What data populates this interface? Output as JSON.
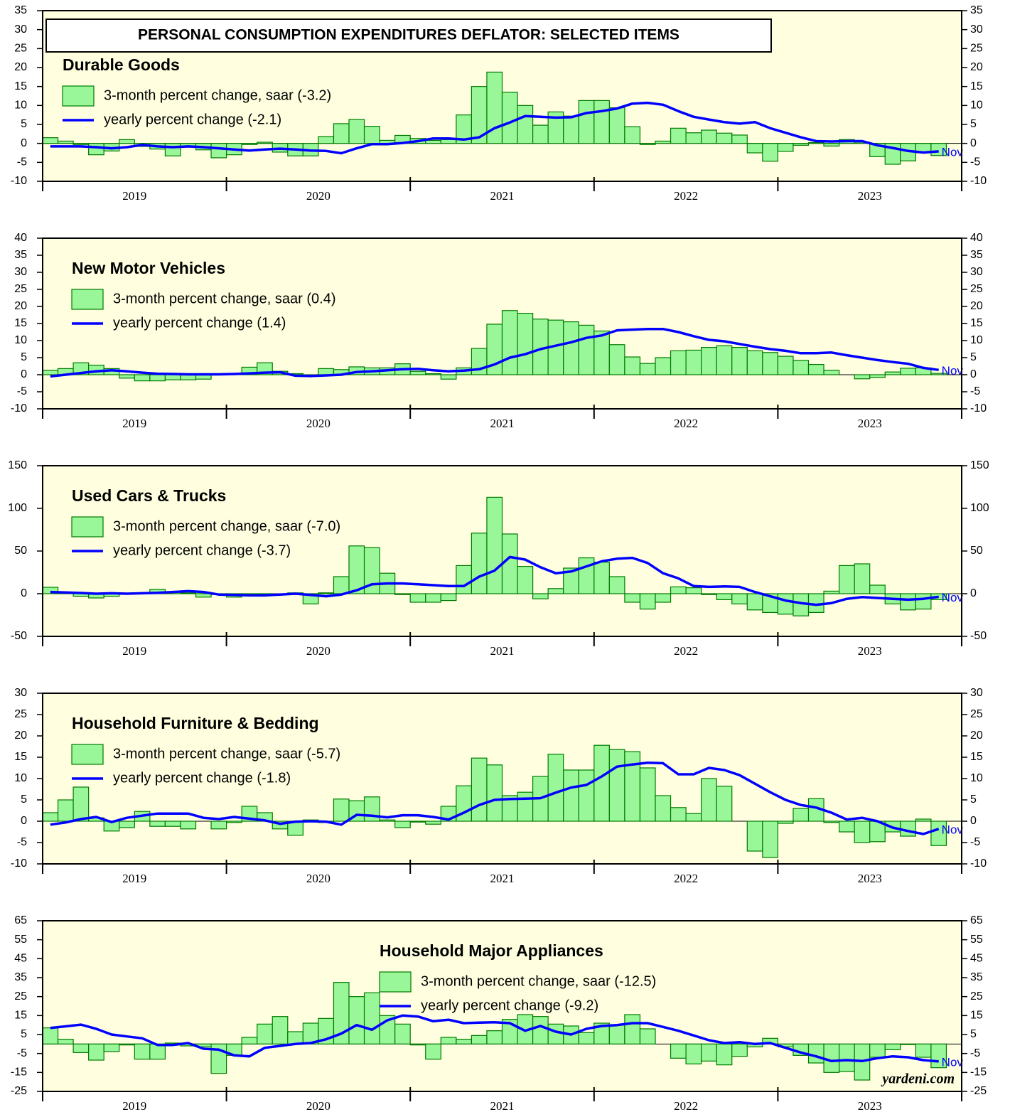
{
  "title": "PERSONAL CONSUMPTION EXPENDITURES DEFLATOR: SELECTED ITEMS",
  "source": "yardeni.com",
  "chart_data": [
    {
      "type": "combo",
      "title": "Durable Goods",
      "legend": "top-left",
      "annotation": "Nov",
      "years": [
        "2019",
        "2020",
        "2021",
        "2022",
        "2023"
      ],
      "ylim": [
        -10,
        35
      ],
      "yticks": [
        -10,
        -5,
        0,
        5,
        10,
        15,
        20,
        25,
        30,
        35
      ],
      "series": [
        {
          "name": "3-month percent change, saar (-3.2)",
          "type": "bar",
          "color": "#99f799",
          "values": [
            1.5,
            0.6,
            -0.3,
            -3,
            -2,
            1,
            -0.8,
            -1.5,
            -3.3,
            -1,
            -1.7,
            -3.8,
            -3,
            -0.3,
            0.3,
            -2.3,
            -3.3,
            -3.3,
            1.8,
            5.2,
            6.3,
            4.5,
            0.8,
            2.1,
            1.3,
            0.8,
            1,
            7.5,
            15,
            18.8,
            13.5,
            10,
            4.8,
            8.3,
            7.2,
            11.3,
            11.3,
            9.4,
            4.4,
            -0.3,
            0.6,
            4,
            2.8,
            3.5,
            2.7,
            2.2,
            -2.5,
            -4.7,
            -2.1,
            -0.5,
            0.2,
            -0.7,
            1,
            0.3,
            -3.5,
            -5.5,
            -4.6,
            -2.5,
            -3.2
          ]
        },
        {
          "name": "yearly percent change (-2.1)",
          "type": "line",
          "color": "#0000ff",
          "values": [
            -0.8,
            -0.8,
            -0.8,
            -1,
            -1.3,
            -1,
            -0.4,
            -0.8,
            -1,
            -0.8,
            -1,
            -1.3,
            -1.6,
            -1.9,
            -1.6,
            -1.4,
            -1.6,
            -1.9,
            -2,
            -2.6,
            -1.3,
            -0.2,
            -0.2,
            0.1,
            0.6,
            1.3,
            1.3,
            1,
            1.6,
            4,
            5.5,
            7.2,
            7,
            6.8,
            6.9,
            8,
            8.5,
            9.2,
            10.5,
            10.7,
            10.2,
            8.5,
            7,
            6.3,
            5.6,
            5.2,
            5.6,
            4,
            2.8,
            1.6,
            0.6,
            0.5,
            0.6,
            0.6,
            -0.5,
            -1.2,
            -2,
            -2.4,
            -2.1
          ]
        }
      ]
    },
    {
      "type": "combo",
      "title": "New Motor Vehicles",
      "legend": "top-left",
      "annotation": "Nov",
      "years": [
        "2019",
        "2020",
        "2021",
        "2022",
        "2023"
      ],
      "ylim": [
        -10,
        40
      ],
      "yticks": [
        -10,
        -5,
        0,
        5,
        10,
        15,
        20,
        25,
        30,
        35,
        40
      ],
      "series": [
        {
          "name": "3-month percent change, saar (0.4)",
          "type": "bar",
          "color": "#99f799",
          "values": [
            1.3,
            1.8,
            3.5,
            2.8,
            1.8,
            -1,
            -1.8,
            -1.8,
            -1.5,
            -1.5,
            -1.3,
            0.3,
            0,
            2.2,
            3.5,
            1,
            0.3,
            -0.3,
            1.8,
            1.5,
            2.3,
            2,
            2,
            3.2,
            1,
            0.3,
            -1.3,
            2,
            7.7,
            14.8,
            18.8,
            18,
            16.3,
            16,
            15.5,
            14.5,
            12.8,
            8.8,
            5.2,
            3.3,
            5,
            7,
            7.2,
            8,
            8.5,
            8,
            7,
            6.5,
            5.4,
            4.2,
            3,
            1.3,
            0,
            -1.2,
            -0.8,
            0.8,
            1.9,
            2,
            0.4
          ]
        },
        {
          "name": "yearly percent change (1.4)",
          "type": "line",
          "color": "#0000ff",
          "values": [
            -0.5,
            0,
            0.5,
            1,
            1.3,
            1,
            0.6,
            0.3,
            0.2,
            0.1,
            0.1,
            0.1,
            0.2,
            0.4,
            0.6,
            0.7,
            -0.3,
            -0.4,
            -0.2,
            0,
            0.8,
            1,
            1.3,
            1.6,
            1.7,
            1.3,
            1,
            1.2,
            1.6,
            3,
            5,
            6,
            7.5,
            8.5,
            9.5,
            10.8,
            11.5,
            13,
            13.2,
            13.4,
            13.4,
            12.5,
            11.3,
            10.2,
            9.8,
            9,
            8.2,
            7.5,
            7,
            6.3,
            6.3,
            6.5,
            5.7,
            5,
            4.3,
            3.7,
            3.2,
            2,
            1.4
          ]
        }
      ]
    },
    {
      "type": "combo",
      "title": "Used Cars & Trucks",
      "legend": "top-left",
      "annotation": "Nov",
      "years": [
        "2019",
        "2020",
        "2021",
        "2022",
        "2023"
      ],
      "ylim": [
        -50,
        150
      ],
      "yticks": [
        -50,
        0,
        50,
        100,
        150
      ],
      "series": [
        {
          "name": "3-month percent change, saar (-7.0)",
          "type": "bar",
          "color": "#99f799",
          "values": [
            7.5,
            1,
            -3,
            -5,
            -3,
            0.5,
            1,
            5,
            2,
            1,
            -4,
            -1,
            -4,
            -1,
            -1,
            0,
            1,
            -12,
            1,
            20,
            56,
            54,
            24,
            -1,
            -10,
            -10,
            -8,
            33,
            71,
            113,
            70,
            32,
            -6,
            6,
            30,
            42,
            37,
            20,
            -10,
            -18,
            -10,
            8,
            7,
            -1,
            -7,
            -12,
            -19,
            -22,
            -24,
            -26,
            -22,
            3,
            33,
            35,
            10,
            -12,
            -19,
            -18,
            -7
          ]
        },
        {
          "name": "yearly percent change (-3.7)",
          "type": "line",
          "color": "#0000ff",
          "values": [
            2,
            1.5,
            0.8,
            0,
            0.5,
            0,
            0.5,
            1,
            2,
            3,
            2,
            -1,
            -1.5,
            -2,
            -2,
            -1,
            0,
            -1.5,
            -3,
            -1,
            4,
            11,
            12,
            12,
            11,
            10,
            9,
            9,
            20,
            27,
            43,
            40,
            31,
            24,
            26,
            32,
            38,
            41,
            42,
            36,
            24,
            18,
            9,
            8,
            8.5,
            8,
            2,
            -3,
            -8,
            -11,
            -13,
            -11,
            -6,
            -4,
            -5,
            -6,
            -7,
            -6,
            -3.7
          ]
        }
      ]
    },
    {
      "type": "combo",
      "title": "Household Furniture & Bedding",
      "legend": "top-left",
      "annotation": "Nov",
      "years": [
        "2019",
        "2020",
        "2021",
        "2022",
        "2023"
      ],
      "ylim": [
        -10,
        30
      ],
      "yticks": [
        -10,
        -5,
        0,
        5,
        10,
        15,
        20,
        25,
        30
      ],
      "series": [
        {
          "name": "3-month percent change, saar (-5.7)",
          "type": "bar",
          "color": "#99f799",
          "values": [
            2,
            5,
            8,
            0.8,
            -2.3,
            -1.5,
            2.3,
            -1.2,
            -1.2,
            -1.8,
            0,
            -1.8,
            -0.3,
            3.5,
            2,
            -1.8,
            -3.3,
            0.3,
            -0.3,
            5.2,
            4.8,
            5.7,
            0.3,
            -1.5,
            -0.2,
            -0.7,
            3.5,
            8.3,
            14.8,
            13.2,
            6,
            6.8,
            10.5,
            15.7,
            12,
            12,
            17.8,
            16.8,
            16.3,
            12.5,
            6,
            3.2,
            1.8,
            10,
            8.2,
            0,
            -7,
            -8.5,
            -0.5,
            3,
            5.3,
            -0.3,
            -2.5,
            -5,
            -4.8,
            -2.5,
            -3.5,
            0.5,
            -5.7
          ]
        },
        {
          "name": "yearly percent change (-1.8)",
          "type": "line",
          "color": "#0000ff",
          "values": [
            -0.8,
            -0.3,
            0.5,
            1,
            -0.2,
            0.8,
            1.3,
            1.8,
            1.8,
            1.8,
            0.8,
            0.5,
            1,
            0.6,
            0.2,
            -0.6,
            -0.1,
            0,
            -0.1,
            -0.8,
            1.5,
            1.3,
            0.9,
            1.4,
            1.4,
            1,
            0.4,
            2,
            3.8,
            5,
            5.2,
            5.3,
            5.4,
            6.7,
            7.9,
            8.5,
            10.5,
            12.8,
            13.3,
            13.7,
            13.6,
            11,
            11,
            12.5,
            12,
            10.8,
            8.8,
            6.8,
            5,
            3.8,
            3.2,
            2,
            0.4,
            0.8,
            0,
            -1.5,
            -2.3,
            -3,
            -1.8
          ]
        }
      ]
    },
    {
      "type": "combo",
      "title": "Household Major Appliances",
      "legend": "top-center",
      "annotation": "Nov",
      "years": [
        "2019",
        "2020",
        "2021",
        "2022",
        "2023"
      ],
      "ylim": [
        -25,
        65
      ],
      "yticks": [
        -25,
        -15,
        -5,
        5,
        15,
        25,
        35,
        45,
        55,
        65
      ],
      "series": [
        {
          "name": "3-month percent change, saar (-12.5)",
          "type": "bar",
          "color": "#99f799",
          "values": [
            8.5,
            2.5,
            -4.5,
            -8.5,
            -4,
            -0.5,
            -8,
            -8,
            0.5,
            -1,
            -1.5,
            -15.5,
            -6,
            3.5,
            10.5,
            14.5,
            6.5,
            11,
            13.5,
            32.5,
            25,
            27,
            15,
            10.5,
            -0.5,
            -8,
            3.5,
            2.5,
            4.5,
            7,
            13,
            15.5,
            14.5,
            10.5,
            9.5,
            6,
            11,
            10,
            15.5,
            8,
            0,
            -7.5,
            -10.5,
            -9,
            -11,
            -6.5,
            -1.5,
            3,
            -1.5,
            -6,
            -10,
            -15,
            -14.5,
            -19,
            -7,
            -3,
            -0.3,
            -7,
            -12.5
          ]
        },
        {
          "name": "yearly percent change (-9.2)",
          "type": "line",
          "color": "#0000ff",
          "values": [
            8.5,
            9.3,
            10.2,
            8,
            5,
            4,
            3,
            -0.5,
            -0.5,
            0.5,
            -2.5,
            -3,
            -6,
            -6.5,
            -2,
            -1,
            0,
            0.5,
            2.5,
            5.5,
            10,
            7.5,
            12.5,
            15,
            14.5,
            12,
            12.8,
            11,
            11.3,
            11.5,
            11,
            7,
            9.5,
            6.5,
            5,
            8,
            9.5,
            10,
            11,
            11,
            9,
            7,
            4.5,
            2,
            0.5,
            1,
            0,
            0.5,
            -2,
            -4.5,
            -6.5,
            -9,
            -8.5,
            -9,
            -7.5,
            -6.5,
            -7,
            -8.5,
            -9.2
          ]
        }
      ]
    }
  ]
}
